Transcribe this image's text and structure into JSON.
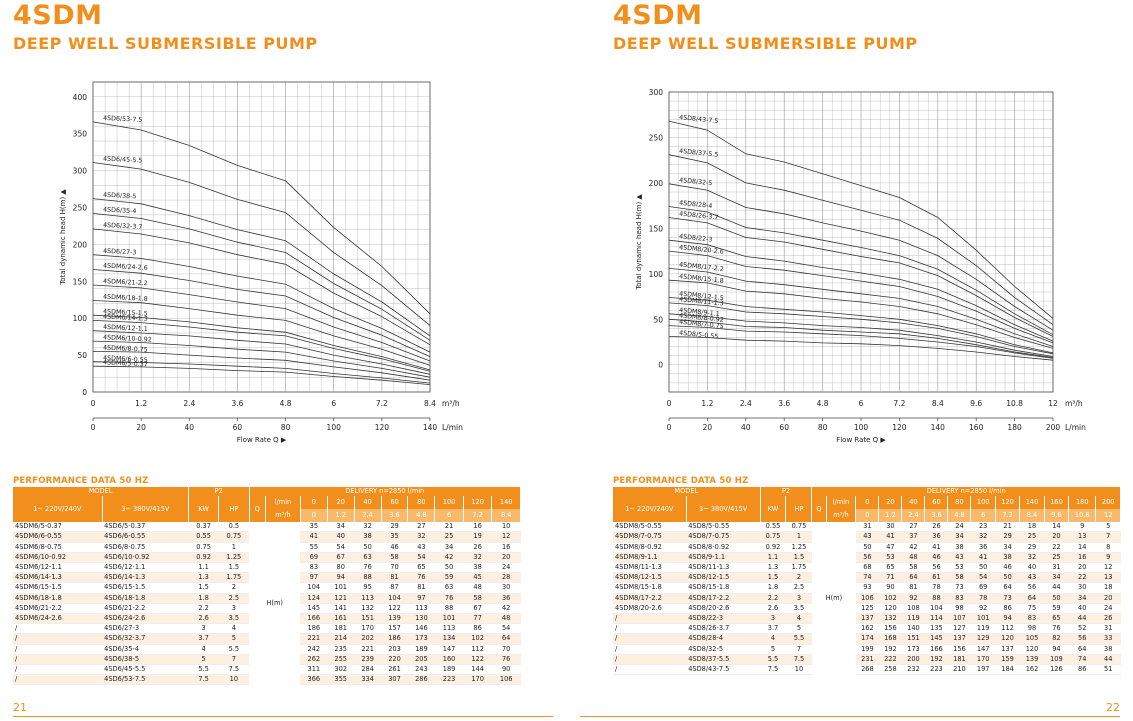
{
  "brand": "4SDM",
  "subtitle": "DEEP WELL SUBMERSIBLE PUMP",
  "perf_title": "PERFORMANCE DATA 50 HZ",
  "axis": {
    "ylabel": "Total dynamic head H(m) ▲",
    "xlabel": "Flow Rate Q ▶",
    "unit_m3": "m³/h",
    "unit_lmin": "L/min"
  },
  "table_headers": {
    "model": "MODEL",
    "p2": "P2",
    "delivery": "DELIVERY  n=2850 l/min",
    "v1": "1~ 220V/240V",
    "v3": "3~ 380V/415V",
    "kw": "KW",
    "hp": "HP",
    "q": "Q",
    "lmin": "l/min",
    "m3h": "m³/h",
    "hm": "H(m)"
  },
  "left": {
    "page_number": "21",
    "chart_data": {
      "type": "line",
      "xlabel": "Flow Rate Q ▶",
      "ylabel": "Total dynamic head H(m) ▲",
      "x_m3h_ticks": [
        "0",
        "1.2",
        "2.4",
        "3.6",
        "4.8",
        "6",
        "7.2",
        "8.4"
      ],
      "x_lmin_ticks": [
        "0",
        "20",
        "40",
        "60",
        "80",
        "100",
        "120",
        "140"
      ],
      "y_ticks": [
        "0",
        "50",
        "100",
        "150",
        "200",
        "250",
        "300",
        "350",
        "400"
      ],
      "xlim": [
        0,
        140
      ],
      "ylim": [
        0,
        420
      ],
      "x_lmin": [
        0,
        20,
        40,
        60,
        80,
        100,
        120,
        140
      ],
      "series": [
        {
          "name": "4SD6/53-7.5",
          "values": [
            366,
            355,
            334,
            307,
            286,
            223,
            170,
            106
          ]
        },
        {
          "name": "4SD6/45-5.5",
          "values": [
            311,
            302,
            284,
            261,
            243,
            189,
            144,
            90
          ]
        },
        {
          "name": "4SD6/38-5",
          "values": [
            262,
            255,
            239,
            220,
            205,
            160,
            122,
            76
          ]
        },
        {
          "name": "4SD6/35-4",
          "values": [
            242,
            235,
            221,
            203,
            189,
            147,
            112,
            70
          ]
        },
        {
          "name": "4SD6/32-3.7",
          "values": [
            221,
            214,
            202,
            186,
            173,
            134,
            102,
            64
          ]
        },
        {
          "name": "4SD6/27-3",
          "values": [
            186,
            181,
            170,
            157,
            146,
            113,
            86,
            54
          ]
        },
        {
          "name": "4SDM6/24-2.6",
          "values": [
            166,
            161,
            151,
            139,
            130,
            101,
            77,
            48
          ]
        },
        {
          "name": "4SDM6/21-2.2",
          "values": [
            145,
            141,
            132,
            122,
            113,
            88,
            67,
            42
          ]
        },
        {
          "name": "4SDM6/18-1.8",
          "values": [
            124,
            121,
            113,
            104,
            97,
            76,
            58,
            36
          ]
        },
        {
          "name": "4SDM6/15-1.5",
          "values": [
            104,
            101,
            95,
            87,
            81,
            63,
            48,
            30
          ]
        },
        {
          "name": "4SDM6/14-1.3",
          "values": [
            97,
            94,
            88,
            81,
            76,
            59,
            45,
            28
          ]
        },
        {
          "name": "4SDM6/12-1.1",
          "values": [
            83,
            80,
            76,
            70,
            65,
            50,
            38,
            24
          ]
        },
        {
          "name": "4SDM6/10-0.92",
          "values": [
            69,
            67,
            63,
            58,
            54,
            42,
            32,
            20
          ]
        },
        {
          "name": "4SDM6/8-0.75",
          "values": [
            55,
            54,
            50,
            46,
            43,
            34,
            26,
            16
          ]
        },
        {
          "name": "4SDM6/6-0.55",
          "values": [
            41,
            40,
            38,
            35,
            32,
            25,
            19,
            12
          ]
        },
        {
          "name": "4SDM6/5-0.37",
          "values": [
            35,
            34,
            32,
            29,
            27,
            21,
            16,
            10
          ]
        }
      ]
    },
    "table": {
      "lmin": [
        "0",
        "20",
        "40",
        "60",
        "80",
        "100",
        "120",
        "140"
      ],
      "m3h": [
        "0",
        "1.2",
        "2.4",
        "3.6",
        "4.8",
        "6",
        "7.2",
        "8.4"
      ],
      "rows": [
        [
          "4SDM6/5-0.37",
          "4SD6/5-0.37",
          "0.37",
          "0.5",
          "35",
          "34",
          "32",
          "29",
          "27",
          "21",
          "16",
          "10"
        ],
        [
          "4SDM6/6-0.55",
          "4SD6/6-0.55",
          "0.55",
          "0.75",
          "41",
          "40",
          "38",
          "35",
          "32",
          "25",
          "19",
          "12"
        ],
        [
          "4SDM6/8-0.75",
          "4SD6/8-0.75",
          "0.75",
          "1",
          "55",
          "54",
          "50",
          "46",
          "43",
          "34",
          "26",
          "16"
        ],
        [
          "4SDM6/10-0.92",
          "4SD6/10-0.92",
          "0.92",
          "1.25",
          "69",
          "67",
          "63",
          "58",
          "54",
          "42",
          "32",
          "20"
        ],
        [
          "4SDM6/12-1.1",
          "4SD6/12-1.1",
          "1.1",
          "1.5",
          "83",
          "80",
          "76",
          "70",
          "65",
          "50",
          "38",
          "24"
        ],
        [
          "4SDM6/14-1.3",
          "4SD6/14-1.3",
          "1.3",
          "1.75",
          "97",
          "94",
          "88",
          "81",
          "76",
          "59",
          "45",
          "28"
        ],
        [
          "4SDM6/15-1.5",
          "4SD6/15-1.5",
          "1.5",
          "2",
          "104",
          "101",
          "95",
          "87",
          "81",
          "63",
          "48",
          "30"
        ],
        [
          "4SDM6/18-1.8",
          "4SD6/18-1.8",
          "1.8",
          "2.5",
          "124",
          "121",
          "113",
          "104",
          "97",
          "76",
          "58",
          "36"
        ],
        [
          "4SDM6/21-2.2",
          "4SD6/21-2.2",
          "2.2",
          "3",
          "145",
          "141",
          "132",
          "122",
          "113",
          "88",
          "67",
          "42"
        ],
        [
          "4SDM6/24-2.6",
          "4SD6/24-2.6",
          "2.6",
          "3.5",
          "166",
          "161",
          "151",
          "139",
          "130",
          "101",
          "77",
          "48"
        ],
        [
          "/",
          "4SD6/27-3",
          "3",
          "4",
          "186",
          "181",
          "170",
          "157",
          "146",
          "113",
          "86",
          "54"
        ],
        [
          "/",
          "4SD6/32-3.7",
          "3.7",
          "5",
          "221",
          "214",
          "202",
          "186",
          "173",
          "134",
          "102",
          "64"
        ],
        [
          "/",
          "4SD6/35-4",
          "4",
          "5.5",
          "242",
          "235",
          "221",
          "203",
          "189",
          "147",
          "112",
          "70"
        ],
        [
          "/",
          "4SD6/38-5",
          "5",
          "7",
          "262",
          "255",
          "239",
          "220",
          "205",
          "160",
          "122",
          "76"
        ],
        [
          "/",
          "4SD6/45-5.5",
          "5.5",
          "7.5",
          "311",
          "302",
          "284",
          "261",
          "243",
          "189",
          "144",
          "90"
        ],
        [
          "/",
          "4SD6/53-7.5",
          "7.5",
          "10",
          "366",
          "355",
          "334",
          "307",
          "286",
          "223",
          "170",
          "106"
        ]
      ]
    }
  },
  "right": {
    "page_number": "22",
    "chart_data": {
      "type": "line",
      "xlabel": "Flow Rate Q ▶",
      "ylabel": "Total dynamic head H(m) ▲",
      "x_m3h_ticks": [
        "0",
        "1.2",
        "2.4",
        "3.6",
        "4.8",
        "6",
        "7.2",
        "8.4",
        "9.6",
        "10.8",
        "12"
      ],
      "x_lmin_ticks": [
        "0",
        "20",
        "40",
        "60",
        "80",
        "100",
        "120",
        "140",
        "160",
        "180",
        "200"
      ],
      "y_ticks": [
        "0",
        "50",
        "100",
        "150",
        "200",
        "250",
        "300"
      ],
      "xlim": [
        0,
        200
      ],
      "ylim": [
        -30,
        300
      ],
      "x_lmin": [
        0,
        20,
        40,
        60,
        80,
        100,
        120,
        140,
        160,
        180,
        200
      ],
      "series": [
        {
          "name": "4SD8/43-7.5",
          "values": [
            268,
            258,
            232,
            223,
            210,
            197,
            184,
            162,
            126,
            86,
            51
          ]
        },
        {
          "name": "4SD8/37-5.5",
          "values": [
            231,
            222,
            200,
            192,
            181,
            170,
            159,
            139,
            109,
            74,
            44
          ]
        },
        {
          "name": "4SD8/32-5",
          "values": [
            199,
            192,
            173,
            166,
            156,
            147,
            137,
            120,
            94,
            64,
            38
          ]
        },
        {
          "name": "4SD8/28-4",
          "values": [
            174,
            168,
            151,
            145,
            137,
            129,
            120,
            105,
            82,
            56,
            33
          ]
        },
        {
          "name": "4SD8/26-3.7",
          "values": [
            162,
            156,
            140,
            135,
            127,
            119,
            112,
            98,
            76,
            52,
            31
          ]
        },
        {
          "name": "4SD8/22-3",
          "values": [
            137,
            132,
            119,
            114,
            107,
            101,
            94,
            83,
            65,
            44,
            26
          ]
        },
        {
          "name": "4SDM8/20-2.6",
          "values": [
            125,
            120,
            108,
            104,
            98,
            92,
            86,
            75,
            59,
            40,
            24
          ]
        },
        {
          "name": "4SDM8/17-2.2",
          "values": [
            106,
            102,
            92,
            88,
            83,
            78,
            73,
            64,
            50,
            34,
            20
          ]
        },
        {
          "name": "4SDM8/15-1.8",
          "values": [
            93,
            90,
            81,
            78,
            73,
            69,
            64,
            56,
            44,
            30,
            18
          ]
        },
        {
          "name": "4SDM8/12-1.5",
          "values": [
            74,
            71,
            64,
            61,
            58,
            54,
            50,
            43,
            34,
            22,
            13
          ]
        },
        {
          "name": "4SDM8/11-1.3",
          "values": [
            68,
            65,
            58,
            56,
            53,
            50,
            46,
            40,
            31,
            20,
            12
          ]
        },
        {
          "name": "4SDM8/9-1.1",
          "values": [
            56,
            53,
            48,
            46,
            43,
            41,
            38,
            32,
            25,
            16,
            9
          ]
        },
        {
          "name": "4SDM8/8-0.92",
          "values": [
            50,
            47,
            42,
            41,
            38,
            36,
            34,
            29,
            22,
            14,
            8
          ]
        },
        {
          "name": "4SDM8/7-0.75",
          "values": [
            43,
            41,
            37,
            36,
            34,
            32,
            29,
            25,
            20,
            13,
            7
          ]
        },
        {
          "name": "4SD8/5-0.55",
          "values": [
            31,
            30,
            27,
            26,
            24,
            23,
            21,
            18,
            14,
            9,
            5
          ]
        }
      ]
    },
    "table": {
      "lmin": [
        "0",
        "20",
        "40",
        "60",
        "80",
        "100",
        "120",
        "140",
        "160",
        "180",
        "200"
      ],
      "m3h": [
        "0",
        "1.2",
        "2.4",
        "3.6",
        "4.8",
        "6",
        "7.2",
        "8.4",
        "9.6",
        "10.8",
        "12"
      ],
      "rows": [
        [
          "4SDM8/5-0.55",
          "4SD8/5-0.55",
          "0.55",
          "0.75",
          "31",
          "30",
          "27",
          "26",
          "24",
          "23",
          "21",
          "18",
          "14",
          "9",
          "5"
        ],
        [
          "4SDM8/7-0.75",
          "4SD8/7-0.75",
          "0.75",
          "1",
          "43",
          "41",
          "37",
          "36",
          "34",
          "32",
          "29",
          "25",
          "20",
          "13",
          "7"
        ],
        [
          "4SDM8/8-0.92",
          "4SD8/8-0.92",
          "0.92",
          "1.25",
          "50",
          "47",
          "42",
          "41",
          "38",
          "36",
          "34",
          "29",
          "22",
          "14",
          "8"
        ],
        [
          "4SDM8/9-1.1",
          "4SD8/9-1.1",
          "1.1",
          "1.5",
          "56",
          "53",
          "48",
          "46",
          "43",
          "41",
          "38",
          "32",
          "25",
          "16",
          "9"
        ],
        [
          "4SDM8/11-1.3",
          "4SD8/11-1.3",
          "1.3",
          "1.75",
          "68",
          "65",
          "58",
          "56",
          "53",
          "50",
          "46",
          "40",
          "31",
          "20",
          "12"
        ],
        [
          "4SDM8/12-1.5",
          "4SD8/12-1.5",
          "1.5",
          "2",
          "74",
          "71",
          "64",
          "61",
          "58",
          "54",
          "50",
          "43",
          "34",
          "22",
          "13"
        ],
        [
          "4SDM8/15-1.8",
          "4SD8/15-1.8",
          "1.8",
          "2.5",
          "93",
          "90",
          "81",
          "78",
          "73",
          "69",
          "64",
          "56",
          "44",
          "30",
          "18"
        ],
        [
          "4SDM8/17-2.2",
          "4SD8/17-2.2",
          "2.2",
          "3",
          "106",
          "102",
          "92",
          "88",
          "83",
          "78",
          "73",
          "64",
          "50",
          "34",
          "20"
        ],
        [
          "4SDM8/20-2.6",
          "4SD8/20-2.6",
          "2.6",
          "3.5",
          "125",
          "120",
          "108",
          "104",
          "98",
          "92",
          "86",
          "75",
          "59",
          "40",
          "24"
        ],
        [
          "/",
          "4SD8/22-3",
          "3",
          "4",
          "137",
          "132",
          "119",
          "114",
          "107",
          "101",
          "94",
          "83",
          "65",
          "44",
          "26"
        ],
        [
          "/",
          "4SD8/26-3.7",
          "3.7",
          "5",
          "162",
          "156",
          "140",
          "135",
          "127",
          "119",
          "112",
          "98",
          "76",
          "52",
          "31"
        ],
        [
          "/",
          "4SD8/28-4",
          "4",
          "5.5",
          "174",
          "168",
          "151",
          "145",
          "137",
          "129",
          "120",
          "105",
          "82",
          "56",
          "33"
        ],
        [
          "/",
          "4SD8/32-5",
          "5",
          "7",
          "199",
          "192",
          "173",
          "166",
          "156",
          "147",
          "137",
          "120",
          "94",
          "64",
          "38"
        ],
        [
          "/",
          "4SD8/37-5.5",
          "5.5",
          "7.5",
          "231",
          "222",
          "200",
          "192",
          "181",
          "170",
          "159",
          "139",
          "109",
          "74",
          "44"
        ],
        [
          "/",
          "4SD8/43-7.5",
          "7.5",
          "10",
          "268",
          "258",
          "232",
          "223",
          "210",
          "197",
          "184",
          "162",
          "126",
          "86",
          "51"
        ]
      ]
    }
  }
}
